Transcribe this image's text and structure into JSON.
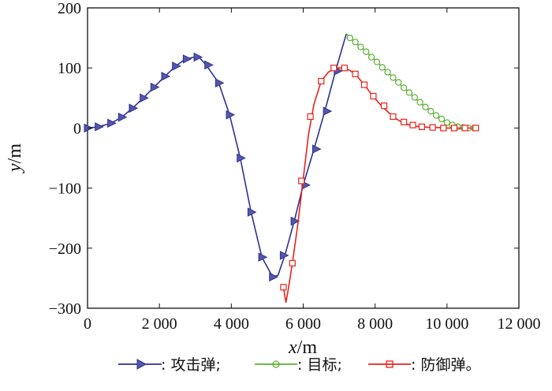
{
  "chart_data": {
    "type": "line",
    "xlabel": {
      "var": "x",
      "unit": "/m"
    },
    "ylabel": {
      "var": "y",
      "unit": "/m"
    },
    "xlim": [
      0,
      12000
    ],
    "ylim": [
      -300,
      200
    ],
    "xticks": [
      {
        "v": 0,
        "label": "0"
      },
      {
        "v": 2000,
        "label": "2 000"
      },
      {
        "v": 4000,
        "label": "4 000"
      },
      {
        "v": 6000,
        "label": "6 000"
      },
      {
        "v": 8000,
        "label": "8 000"
      },
      {
        "v": 10000,
        "label": "10 000"
      },
      {
        "v": 12000,
        "label": "12 000"
      }
    ],
    "yticks": [
      {
        "v": 200,
        "label": "200"
      },
      {
        "v": 100,
        "label": "100"
      },
      {
        "v": 0,
        "label": "0"
      },
      {
        "v": -100,
        "label": "−100"
      },
      {
        "v": -200,
        "label": "−200"
      },
      {
        "v": -300,
        "label": "−300"
      }
    ],
    "grid": false,
    "legend_position": "bottom",
    "series": [
      {
        "name": ": 攻击弹;",
        "color": "#2e3192",
        "marker": "triangle-right",
        "points": [
          [
            0,
            0
          ],
          [
            300,
            2
          ],
          [
            650,
            8
          ],
          [
            950,
            18
          ],
          [
            1250,
            33
          ],
          [
            1550,
            50
          ],
          [
            1850,
            68
          ],
          [
            2150,
            86
          ],
          [
            2450,
            103
          ],
          [
            2700,
            114
          ],
          [
            2950,
            118
          ],
          [
            3100,
            118
          ],
          [
            3300,
            105
          ],
          [
            3650,
            75
          ],
          [
            3950,
            22
          ],
          [
            4250,
            -50
          ],
          [
            4550,
            -140
          ],
          [
            4850,
            -215
          ],
          [
            5150,
            -248
          ],
          [
            5300,
            -245
          ],
          [
            5500,
            -210
          ],
          [
            5750,
            -155
          ],
          [
            6000,
            -95
          ],
          [
            6300,
            -35
          ],
          [
            6600,
            28
          ],
          [
            6900,
            95
          ],
          [
            7200,
            157
          ]
        ],
        "markers": [
          [
            0,
            0
          ],
          [
            300,
            2
          ],
          [
            650,
            8
          ],
          [
            950,
            18
          ],
          [
            1250,
            33
          ],
          [
            1550,
            50
          ],
          [
            1850,
            68
          ],
          [
            2150,
            86
          ],
          [
            2450,
            103
          ],
          [
            2750,
            115
          ],
          [
            3050,
            118
          ],
          [
            3350,
            105
          ],
          [
            3650,
            75
          ],
          [
            3950,
            22
          ],
          [
            4250,
            -50
          ],
          [
            4550,
            -140
          ],
          [
            4850,
            -215
          ],
          [
            5150,
            -248
          ],
          [
            5450,
            -212
          ],
          [
            5750,
            -155
          ],
          [
            6050,
            -95
          ],
          [
            6350,
            -35
          ],
          [
            6650,
            28
          ],
          [
            6950,
            95
          ]
        ]
      },
      {
        "name": ": 目标;",
        "color": "#5cb135",
        "marker": "circle",
        "points": [
          [
            7200,
            157
          ],
          [
            7400,
            145
          ],
          [
            7600,
            135
          ],
          [
            7800,
            124
          ],
          [
            8000,
            113
          ],
          [
            8200,
            101
          ],
          [
            8400,
            90
          ],
          [
            8600,
            78
          ],
          [
            8800,
            67
          ],
          [
            9000,
            56
          ],
          [
            9200,
            45
          ],
          [
            9400,
            35
          ],
          [
            9600,
            25
          ],
          [
            9800,
            16
          ],
          [
            10000,
            9
          ],
          [
            10200,
            4
          ],
          [
            10400,
            1
          ],
          [
            10600,
            0
          ],
          [
            10800,
            0
          ]
        ],
        "markers": [
          [
            7300,
            150
          ],
          [
            7450,
            143
          ],
          [
            7600,
            135
          ],
          [
            7750,
            127
          ],
          [
            7900,
            118
          ],
          [
            8050,
            110
          ],
          [
            8200,
            101
          ],
          [
            8350,
            93
          ],
          [
            8500,
            84
          ],
          [
            8650,
            76
          ],
          [
            8800,
            67
          ],
          [
            8950,
            59
          ],
          [
            9100,
            51
          ],
          [
            9250,
            43
          ],
          [
            9400,
            35
          ],
          [
            9550,
            28
          ],
          [
            9700,
            21
          ],
          [
            9850,
            15
          ],
          [
            10000,
            9
          ],
          [
            10150,
            5
          ],
          [
            10300,
            2
          ],
          [
            10450,
            1
          ],
          [
            10600,
            0
          ],
          [
            10750,
            0
          ]
        ]
      },
      {
        "name": ": 防御弹。",
        "color": "#e8231b",
        "marker": "square",
        "points": [
          [
            5450,
            -265
          ],
          [
            5520,
            -290
          ],
          [
            5580,
            -270
          ],
          [
            5700,
            -225
          ],
          [
            5850,
            -160
          ],
          [
            6000,
            -85
          ],
          [
            6150,
            -10
          ],
          [
            6300,
            40
          ],
          [
            6500,
            78
          ],
          [
            6700,
            93
          ],
          [
            6900,
            100
          ],
          [
            7100,
            100
          ],
          [
            7300,
            96
          ],
          [
            7500,
            86
          ],
          [
            7700,
            72
          ],
          [
            7900,
            56
          ],
          [
            8100,
            42
          ],
          [
            8300,
            30
          ],
          [
            8500,
            19
          ],
          [
            8700,
            11
          ],
          [
            8900,
            6
          ],
          [
            9100,
            3
          ],
          [
            9300,
            2
          ],
          [
            9500,
            1
          ],
          [
            9700,
            1
          ],
          [
            9900,
            0
          ],
          [
            10200,
            0
          ],
          [
            10500,
            0
          ],
          [
            10800,
            0
          ]
        ],
        "markers": [
          [
            5450,
            -265
          ],
          [
            5700,
            -225
          ],
          [
            5950,
            -88
          ],
          [
            6200,
            19
          ],
          [
            6500,
            78
          ],
          [
            6850,
            100
          ],
          [
            7150,
            100
          ],
          [
            7450,
            90
          ],
          [
            7700,
            72
          ],
          [
            7950,
            53
          ],
          [
            8250,
            37
          ],
          [
            8500,
            19
          ],
          [
            8800,
            10
          ],
          [
            9050,
            5
          ],
          [
            9300,
            2
          ],
          [
            9600,
            1
          ],
          [
            9900,
            0
          ],
          [
            10200,
            0
          ],
          [
            10500,
            0
          ],
          [
            10800,
            0
          ]
        ]
      }
    ]
  }
}
